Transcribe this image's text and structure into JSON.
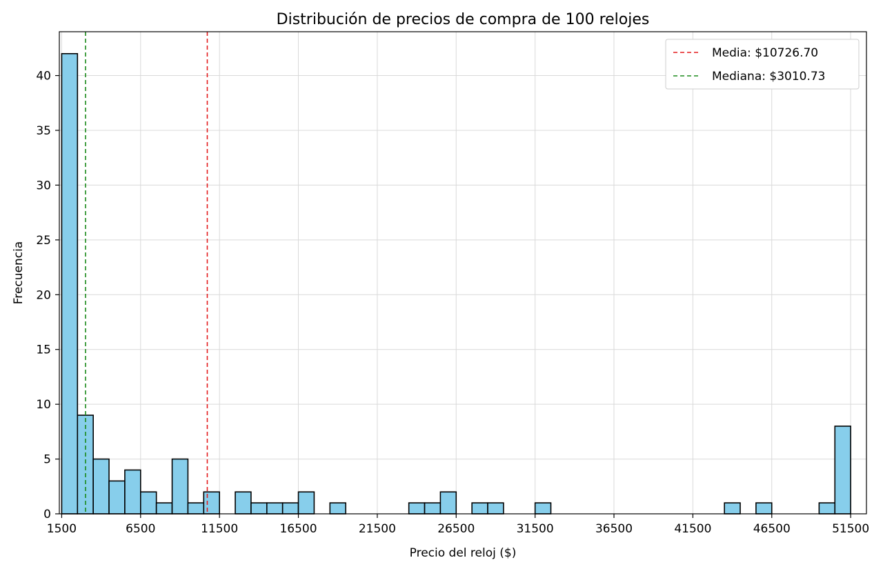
{
  "chart_data": {
    "type": "bar",
    "title": "Distribución de precios de compra de 100 relojes",
    "xlabel": "Precio del reloj ($)",
    "ylabel": "Frecuencia",
    "bin_width": 1000,
    "bins": [
      {
        "start": 1500,
        "count": 42
      },
      {
        "start": 2500,
        "count": 9
      },
      {
        "start": 3500,
        "count": 5
      },
      {
        "start": 4500,
        "count": 3
      },
      {
        "start": 5500,
        "count": 4
      },
      {
        "start": 6500,
        "count": 2
      },
      {
        "start": 7500,
        "count": 1
      },
      {
        "start": 8500,
        "count": 5
      },
      {
        "start": 9500,
        "count": 1
      },
      {
        "start": 10500,
        "count": 2
      },
      {
        "start": 11500,
        "count": 0
      },
      {
        "start": 12500,
        "count": 2
      },
      {
        "start": 13500,
        "count": 1
      },
      {
        "start": 14500,
        "count": 1
      },
      {
        "start": 15500,
        "count": 1
      },
      {
        "start": 16500,
        "count": 2
      },
      {
        "start": 17500,
        "count": 0
      },
      {
        "start": 18500,
        "count": 1
      },
      {
        "start": 19500,
        "count": 0
      },
      {
        "start": 20500,
        "count": 0
      },
      {
        "start": 21500,
        "count": 0
      },
      {
        "start": 22500,
        "count": 0
      },
      {
        "start": 23500,
        "count": 1
      },
      {
        "start": 24500,
        "count": 1
      },
      {
        "start": 25500,
        "count": 2
      },
      {
        "start": 26500,
        "count": 0
      },
      {
        "start": 27500,
        "count": 1
      },
      {
        "start": 28500,
        "count": 1
      },
      {
        "start": 29500,
        "count": 0
      },
      {
        "start": 30500,
        "count": 0
      },
      {
        "start": 31500,
        "count": 1
      },
      {
        "start": 32500,
        "count": 0
      },
      {
        "start": 33500,
        "count": 0
      },
      {
        "start": 34500,
        "count": 0
      },
      {
        "start": 35500,
        "count": 0
      },
      {
        "start": 36500,
        "count": 0
      },
      {
        "start": 37500,
        "count": 0
      },
      {
        "start": 38500,
        "count": 0
      },
      {
        "start": 39500,
        "count": 0
      },
      {
        "start": 40500,
        "count": 0
      },
      {
        "start": 41500,
        "count": 0
      },
      {
        "start": 42500,
        "count": 0
      },
      {
        "start": 43500,
        "count": 1
      },
      {
        "start": 44500,
        "count": 0
      },
      {
        "start": 45500,
        "count": 1
      },
      {
        "start": 46500,
        "count": 0
      },
      {
        "start": 47500,
        "count": 0
      },
      {
        "start": 48500,
        "count": 0
      },
      {
        "start": 49500,
        "count": 1
      },
      {
        "start": 50500,
        "count": 8
      }
    ],
    "xlim": [
      1350,
      52500
    ],
    "ylim": [
      0,
      44
    ],
    "xticks": [
      1500,
      6500,
      11500,
      16500,
      21500,
      26500,
      31500,
      36500,
      41500,
      46500,
      51500
    ],
    "yticks": [
      0,
      5,
      10,
      15,
      20,
      25,
      30,
      35,
      40
    ],
    "reference_lines": [
      {
        "label": "Media: $10726.70",
        "value": 10726.7,
        "color": "#e31a1c"
      },
      {
        "label": "Mediana: $3010.73",
        "value": 3010.73,
        "color": "#1a8a1a"
      }
    ],
    "bar_color": "#87ceeb",
    "bar_edge_color": "#000000",
    "grid": true,
    "legend_position": "top-right"
  }
}
